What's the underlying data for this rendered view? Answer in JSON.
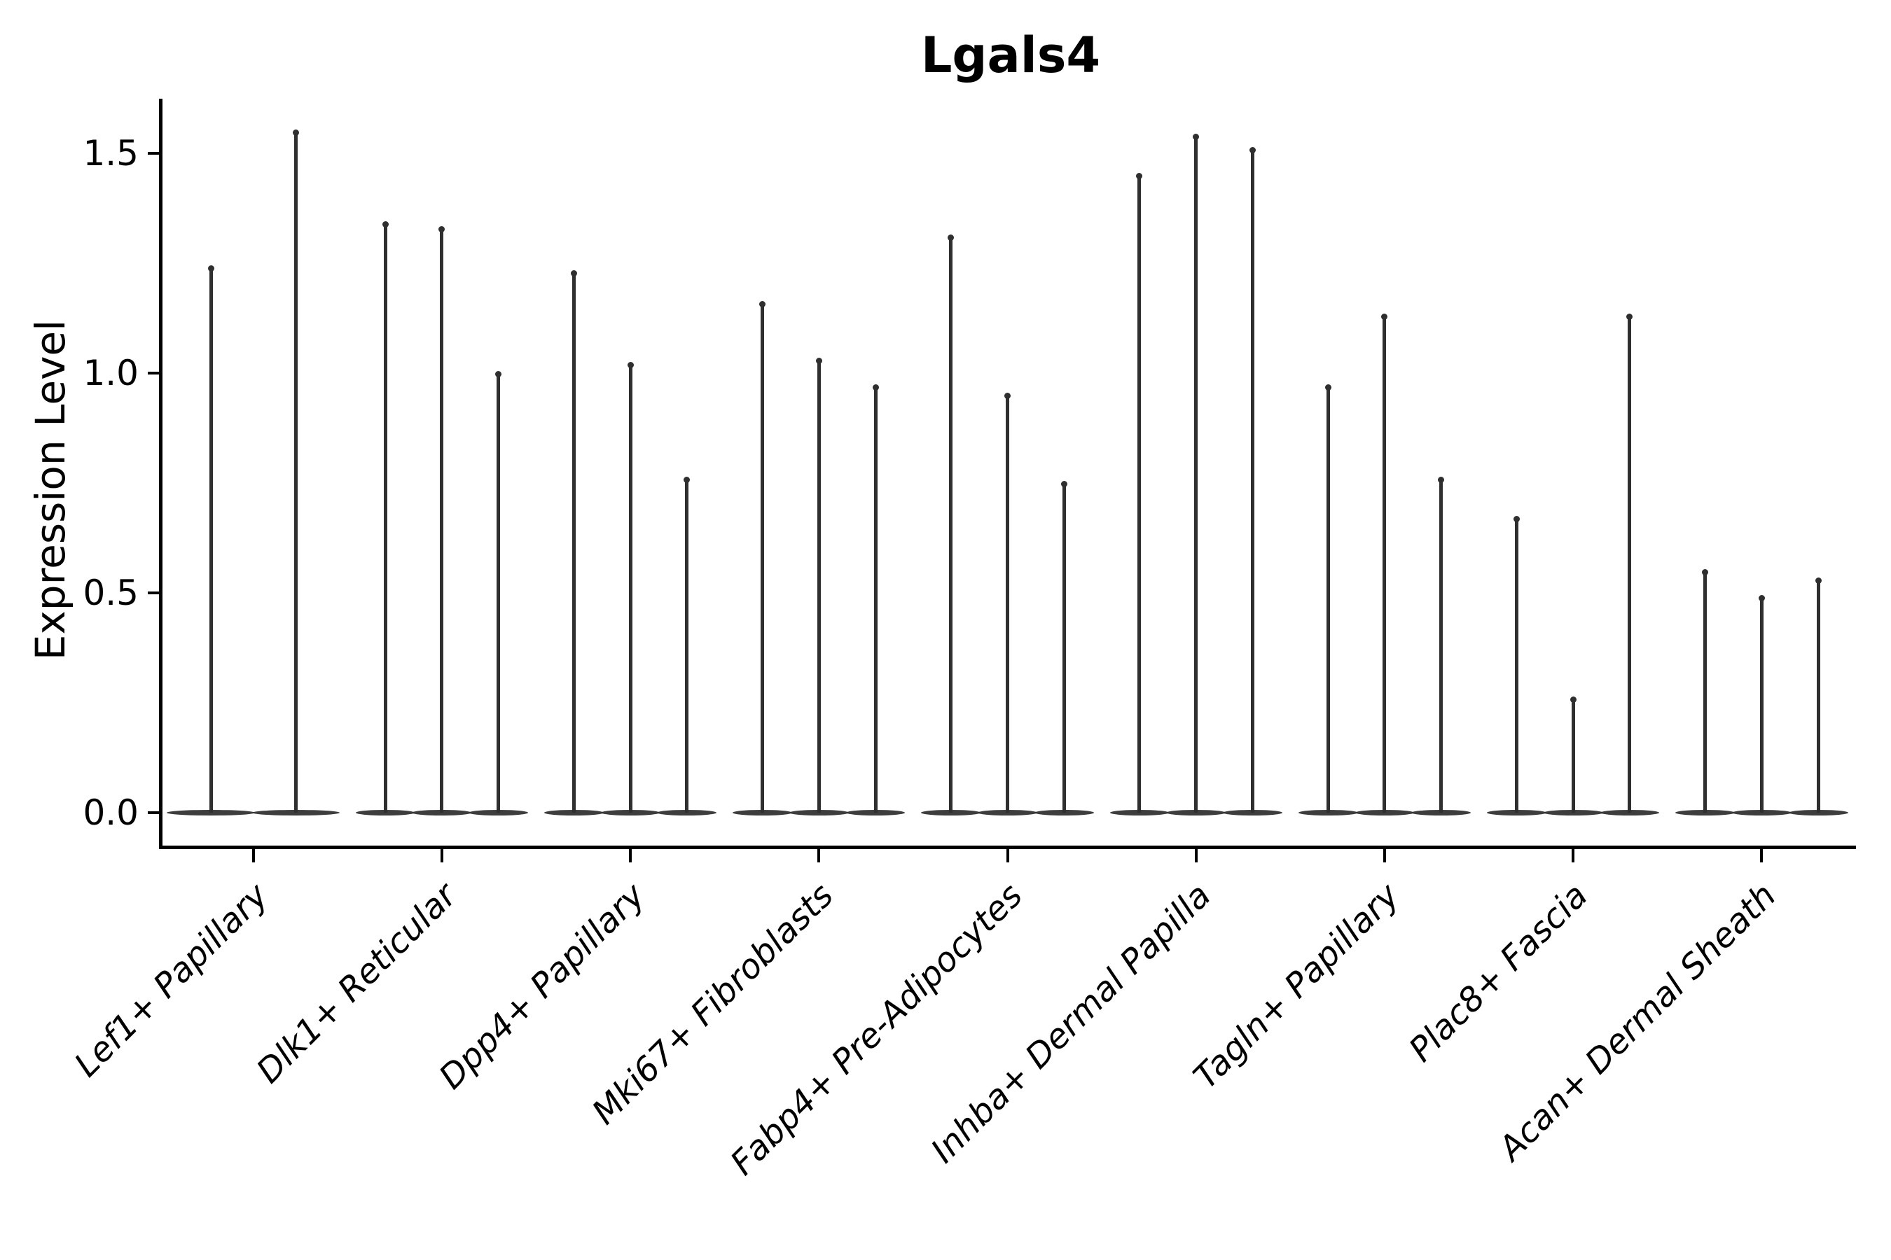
{
  "title": "Lgals4",
  "y_axis": {
    "label": "Expression Level",
    "tick_labels": [
      "0.0",
      "0.5",
      "1.0",
      "1.5"
    ],
    "tick_values": [
      0.0,
      0.5,
      1.0,
      1.5
    ]
  },
  "colors": {
    "violin": "#2f2f2f",
    "axis": "#000000",
    "text": "#000000",
    "background": "#ffffff"
  },
  "chart_data": {
    "type": "violin",
    "title": "Lgals4",
    "xlabel": "",
    "ylabel": "Expression Level",
    "ylim": [
      0,
      1.65
    ],
    "yticks": [
      0.0,
      0.5,
      1.0,
      1.5
    ],
    "grid": false,
    "legend": "none",
    "description": "Needle-thin violin plot of Lgals4 expression; most cells at 0 with narrow spikes reaching the listed maxima. Category 1 contains 2 violins, all others contain 3.",
    "categories": [
      "Lef1+ Papillary",
      "Dlk1+ Reticular",
      "Dpp4+ Papillary",
      "Mki67+ Fibroblasts",
      "Fabp4+ Pre-Adipocytes",
      "Inhba+ Dermal Papilla",
      "Tagln+ Papillary",
      "Plac8+ Fascia",
      "Acan+ Dermal Sheath"
    ],
    "series": [
      {
        "category": "Lef1+ Papillary",
        "spike_maxima": [
          1.24,
          1.55
        ]
      },
      {
        "category": "Dlk1+ Reticular",
        "spike_maxima": [
          1.34,
          1.33,
          1.0
        ]
      },
      {
        "category": "Dpp4+ Papillary",
        "spike_maxima": [
          1.23,
          1.02,
          0.76
        ]
      },
      {
        "category": "Mki67+ Fibroblasts",
        "spike_maxima": [
          1.16,
          1.03,
          0.97
        ]
      },
      {
        "category": "Fabp4+ Pre-Adipocytes",
        "spike_maxima": [
          1.31,
          0.95,
          0.75
        ]
      },
      {
        "category": "Inhba+ Dermal Papilla",
        "spike_maxima": [
          1.45,
          1.54,
          1.51
        ]
      },
      {
        "category": "Tagln+ Papillary",
        "spike_maxima": [
          0.97,
          1.13,
          0.76
        ]
      },
      {
        "category": "Plac8+ Fascia",
        "spike_maxima": [
          0.67,
          0.26,
          1.13
        ]
      },
      {
        "category": "Acan+ Dermal Sheath",
        "spike_maxima": [
          0.55,
          0.49,
          0.53
        ]
      }
    ]
  }
}
